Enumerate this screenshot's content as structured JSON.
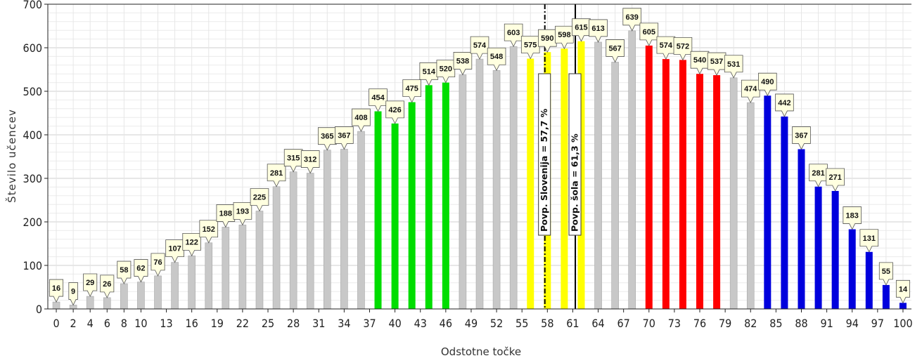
{
  "chart_data": {
    "type": "bar",
    "ylabel": "Število učencev",
    "xlabel": "Odstotne točke",
    "ylim": [
      0,
      700
    ],
    "yticks": [
      0,
      100,
      200,
      300,
      400,
      500,
      600,
      700
    ],
    "xticks": [
      0,
      2,
      4,
      6,
      8,
      10,
      13,
      16,
      19,
      22,
      25,
      28,
      31,
      34,
      37,
      40,
      43,
      46,
      49,
      52,
      55,
      58,
      61,
      64,
      67,
      70,
      73,
      76,
      79,
      82,
      85,
      88,
      91,
      94,
      97,
      100
    ],
    "grid": true,
    "colors": {
      "gray": "#c8c8c8",
      "green": "#00dd00",
      "yellow": "#ffff00",
      "red": "#ff0000",
      "blue": "#0000dd",
      "label_bg": "#ffffe0"
    },
    "bars": [
      {
        "x": 0,
        "value": 16,
        "color": "gray"
      },
      {
        "x": 2,
        "value": 9,
        "color": "gray"
      },
      {
        "x": 4,
        "value": 29,
        "color": "gray"
      },
      {
        "x": 6,
        "value": 26,
        "color": "gray"
      },
      {
        "x": 8,
        "value": 58,
        "color": "gray"
      },
      {
        "x": 10,
        "value": 62,
        "color": "gray"
      },
      {
        "x": 12,
        "value": 76,
        "color": "gray"
      },
      {
        "x": 14,
        "value": 107,
        "color": "gray"
      },
      {
        "x": 16,
        "value": 122,
        "color": "gray"
      },
      {
        "x": 18,
        "value": 152,
        "color": "gray"
      },
      {
        "x": 20,
        "value": 188,
        "color": "gray"
      },
      {
        "x": 22,
        "value": 193,
        "color": "gray"
      },
      {
        "x": 24,
        "value": 225,
        "color": "gray"
      },
      {
        "x": 26,
        "value": 281,
        "color": "gray"
      },
      {
        "x": 28,
        "value": 315,
        "color": "gray"
      },
      {
        "x": 30,
        "value": 312,
        "color": "gray"
      },
      {
        "x": 32,
        "value": 365,
        "color": "gray"
      },
      {
        "x": 34,
        "value": 367,
        "color": "gray"
      },
      {
        "x": 36,
        "value": 408,
        "color": "gray"
      },
      {
        "x": 38,
        "value": 454,
        "color": "green"
      },
      {
        "x": 40,
        "value": 426,
        "color": "green"
      },
      {
        "x": 42,
        "value": 475,
        "color": "green"
      },
      {
        "x": 44,
        "value": 514,
        "color": "green"
      },
      {
        "x": 46,
        "value": 520,
        "color": "green"
      },
      {
        "x": 48,
        "value": 538,
        "color": "gray"
      },
      {
        "x": 50,
        "value": 574,
        "color": "gray"
      },
      {
        "x": 52,
        "value": 548,
        "color": "gray"
      },
      {
        "x": 54,
        "value": 603,
        "color": "gray"
      },
      {
        "x": 56,
        "value": 575,
        "color": "yellow"
      },
      {
        "x": 58,
        "value": 590,
        "color": "yellow"
      },
      {
        "x": 60,
        "value": 598,
        "color": "yellow"
      },
      {
        "x": 62,
        "value": 615,
        "color": "yellow"
      },
      {
        "x": 64,
        "value": 613,
        "color": "gray"
      },
      {
        "x": 66,
        "value": 567,
        "color": "gray"
      },
      {
        "x": 68,
        "value": 639,
        "color": "gray"
      },
      {
        "x": 70,
        "value": 605,
        "color": "red"
      },
      {
        "x": 72,
        "value": 574,
        "color": "red"
      },
      {
        "x": 74,
        "value": 572,
        "color": "red"
      },
      {
        "x": 76,
        "value": 540,
        "color": "red"
      },
      {
        "x": 78,
        "value": 537,
        "color": "red"
      },
      {
        "x": 80,
        "value": 531,
        "color": "gray"
      },
      {
        "x": 82,
        "value": 474,
        "color": "gray"
      },
      {
        "x": 84,
        "value": 490,
        "color": "blue"
      },
      {
        "x": 86,
        "value": 442,
        "color": "blue"
      },
      {
        "x": 88,
        "value": 367,
        "color": "blue"
      },
      {
        "x": 90,
        "value": 281,
        "color": "blue"
      },
      {
        "x": 92,
        "value": 271,
        "color": "blue"
      },
      {
        "x": 94,
        "value": 183,
        "color": "blue"
      },
      {
        "x": 96,
        "value": 131,
        "color": "blue"
      },
      {
        "x": 98,
        "value": 55,
        "color": "blue"
      },
      {
        "x": 100,
        "value": 14,
        "color": "blue"
      }
    ],
    "markers": [
      {
        "x": 57.7,
        "label": "Povp. Slovenija = 57,7 %",
        "style": "dashdot"
      },
      {
        "x": 61.3,
        "label": "Povp. šola = 61,3 %",
        "style": "solid"
      }
    ]
  }
}
